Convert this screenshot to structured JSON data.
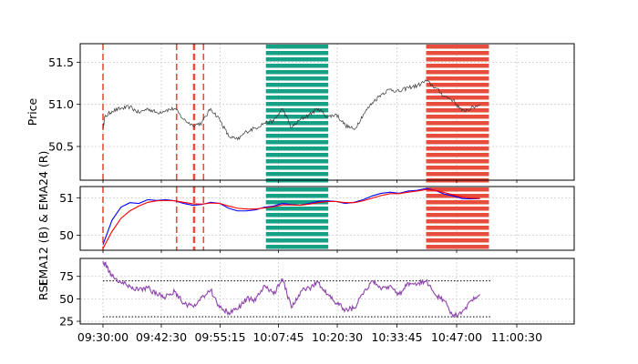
{
  "chart_data": [
    {
      "type": "line",
      "panel": "price",
      "ylabel": "Price",
      "y_ticks": [
        50.5,
        51.0,
        51.5
      ],
      "ylim": [
        50.1,
        51.72
      ],
      "grid": true,
      "x_range_seconds_from_open": [
        -1650,
        7650
      ],
      "series": [
        {
          "color": "#333333",
          "points": [
            [
              0,
              50.72
            ],
            [
              60,
              50.85
            ],
            [
              300,
              50.92
            ],
            [
              600,
              50.95
            ],
            [
              900,
              50.97
            ],
            [
              1200,
              50.9
            ],
            [
              1500,
              50.95
            ],
            [
              1800,
              50.9
            ],
            [
              2100,
              50.93
            ],
            [
              2400,
              50.95
            ],
            [
              2700,
              50.82
            ],
            [
              3000,
              50.75
            ],
            [
              3300,
              50.78
            ],
            [
              3600,
              50.95
            ],
            [
              3900,
              50.82
            ],
            [
              4200,
              50.62
            ],
            [
              4500,
              50.58
            ],
            [
              4800,
              50.68
            ],
            [
              5100,
              50.72
            ],
            [
              5400,
              50.78
            ],
            [
              5700,
              50.8
            ],
            [
              6000,
              50.95
            ],
            [
              6300,
              50.72
            ],
            [
              6600,
              50.82
            ],
            [
              6900,
              50.88
            ],
            [
              7200,
              50.95
            ],
            [
              7500,
              50.85
            ],
            [
              7800,
              50.88
            ],
            [
              8100,
              50.75
            ],
            [
              8400,
              50.7
            ],
            [
              8700,
              50.88
            ],
            [
              9000,
              51.02
            ],
            [
              9300,
              51.12
            ],
            [
              9600,
              51.18
            ],
            [
              9900,
              51.15
            ],
            [
              10200,
              51.2
            ],
            [
              10500,
              51.22
            ],
            [
              10800,
              51.28
            ],
            [
              11100,
              51.2
            ],
            [
              11400,
              51.1
            ],
            [
              11700,
              51.05
            ],
            [
              12000,
              50.92
            ],
            [
              12300,
              50.95
            ],
            [
              12600,
              51.0
            ]
          ]
        }
      ]
    },
    {
      "type": "line",
      "panel": "ema",
      "ylabel": "EMA12 (B) & EMA24 (R)",
      "y_ticks": [
        50,
        51
      ],
      "ylim": [
        49.6,
        51.3
      ],
      "grid": true,
      "series": [
        {
          "color": "#0000ff",
          "points": [
            [
              0,
              49.75
            ],
            [
              300,
              50.4
            ],
            [
              600,
              50.75
            ],
            [
              900,
              50.87
            ],
            [
              1200,
              50.85
            ],
            [
              1500,
              50.95
            ],
            [
              1800,
              50.93
            ],
            [
              2100,
              50.95
            ],
            [
              2400,
              50.92
            ],
            [
              2700,
              50.85
            ],
            [
              3000,
              50.8
            ],
            [
              3300,
              50.82
            ],
            [
              3600,
              50.88
            ],
            [
              3900,
              50.85
            ],
            [
              4200,
              50.72
            ],
            [
              4500,
              50.65
            ],
            [
              4800,
              50.65
            ],
            [
              5100,
              50.68
            ],
            [
              5400,
              50.75
            ],
            [
              5700,
              50.78
            ],
            [
              6000,
              50.85
            ],
            [
              6300,
              50.82
            ],
            [
              6600,
              50.8
            ],
            [
              6900,
              50.85
            ],
            [
              7200,
              50.9
            ],
            [
              7500,
              50.92
            ],
            [
              7800,
              50.9
            ],
            [
              8100,
              50.85
            ],
            [
              8400,
              50.88
            ],
            [
              8700,
              50.95
            ],
            [
              9000,
              51.05
            ],
            [
              9300,
              51.12
            ],
            [
              9600,
              51.15
            ],
            [
              9900,
              51.12
            ],
            [
              10200,
              51.18
            ],
            [
              10500,
              51.2
            ],
            [
              10800,
              51.25
            ],
            [
              11100,
              51.2
            ],
            [
              11400,
              51.1
            ],
            [
              11700,
              51.05
            ],
            [
              12000,
              50.98
            ],
            [
              12300,
              50.97
            ],
            [
              12600,
              50.98
            ]
          ]
        },
        {
          "color": "#ff0000",
          "points": [
            [
              0,
              49.65
            ],
            [
              300,
              50.1
            ],
            [
              600,
              50.45
            ],
            [
              900,
              50.65
            ],
            [
              1200,
              50.78
            ],
            [
              1500,
              50.88
            ],
            [
              1800,
              50.92
            ],
            [
              2100,
              50.93
            ],
            [
              2400,
              50.92
            ],
            [
              2700,
              50.88
            ],
            [
              3000,
              50.84
            ],
            [
              3300,
              50.83
            ],
            [
              3600,
              50.86
            ],
            [
              3900,
              50.85
            ],
            [
              4200,
              50.78
            ],
            [
              4500,
              50.72
            ],
            [
              4800,
              50.7
            ],
            [
              5100,
              50.7
            ],
            [
              5400,
              50.73
            ],
            [
              5700,
              50.76
            ],
            [
              6000,
              50.81
            ],
            [
              6300,
              50.81
            ],
            [
              6600,
              50.8
            ],
            [
              6900,
              50.83
            ],
            [
              7200,
              50.87
            ],
            [
              7500,
              50.9
            ],
            [
              7800,
              50.9
            ],
            [
              8100,
              50.87
            ],
            [
              8400,
              50.87
            ],
            [
              8700,
              50.92
            ],
            [
              9000,
              50.99
            ],
            [
              9300,
              51.06
            ],
            [
              9600,
              51.11
            ],
            [
              9900,
              51.11
            ],
            [
              10200,
              51.15
            ],
            [
              10500,
              51.18
            ],
            [
              10800,
              51.22
            ],
            [
              11100,
              51.2
            ],
            [
              11400,
              51.14
            ],
            [
              11700,
              51.08
            ],
            [
              12000,
              51.02
            ],
            [
              12300,
              50.99
            ],
            [
              12600,
              50.98
            ]
          ]
        }
      ]
    },
    {
      "type": "line",
      "panel": "rsi",
      "ylabel": "RSI",
      "y_ticks": [
        25,
        50,
        75
      ],
      "ylim": [
        22,
        95
      ],
      "grid": true,
      "levels": [
        70,
        30
      ],
      "series": [
        {
          "color": "#8e44ad",
          "points": [
            [
              0,
              92
            ],
            [
              150,
              85
            ],
            [
              300,
              75
            ],
            [
              600,
              68
            ],
            [
              900,
              64
            ],
            [
              1200,
              60
            ],
            [
              1500,
              62
            ],
            [
              1800,
              55
            ],
            [
              2100,
              52
            ],
            [
              2400,
              58
            ],
            [
              2700,
              45
            ],
            [
              3000,
              42
            ],
            [
              3300,
              52
            ],
            [
              3600,
              60
            ],
            [
              3900,
              40
            ],
            [
              4200,
              35
            ],
            [
              4500,
              38
            ],
            [
              4800,
              50
            ],
            [
              5100,
              48
            ],
            [
              5400,
              65
            ],
            [
              5700,
              55
            ],
            [
              6000,
              72
            ],
            [
              6300,
              40
            ],
            [
              6600,
              58
            ],
            [
              6900,
              62
            ],
            [
              7200,
              68
            ],
            [
              7500,
              55
            ],
            [
              7800,
              45
            ],
            [
              8100,
              38
            ],
            [
              8400,
              40
            ],
            [
              8700,
              55
            ],
            [
              9000,
              70
            ],
            [
              9300,
              60
            ],
            [
              9600,
              65
            ],
            [
              9900,
              55
            ],
            [
              10200,
              68
            ],
            [
              10500,
              66
            ],
            [
              10800,
              70
            ],
            [
              11100,
              55
            ],
            [
              11400,
              48
            ],
            [
              11700,
              30
            ],
            [
              12000,
              35
            ],
            [
              12300,
              48
            ],
            [
              12600,
              55
            ]
          ]
        }
      ]
    }
  ],
  "shared_x": {
    "tick_labels": [
      "09:30:00",
      "09:42:30",
      "09:55:15",
      "10:07:45",
      "10:20:30",
      "10:33:45",
      "10:47:00",
      "11:00:30"
    ],
    "tick_seconds": [
      0,
      1950,
      3915,
      5865,
      7830,
      9825,
      11820,
      13830
    ]
  },
  "signals": {
    "sell_lines_seconds": [
      0,
      2460,
      3030,
      3060,
      3360
    ],
    "buy_zone_seconds": [
      5445,
      7530
    ],
    "sell_zone_seconds": [
      10800,
      12900
    ],
    "buy_color": "#16a085",
    "sell_color": "#e74c3c"
  }
}
